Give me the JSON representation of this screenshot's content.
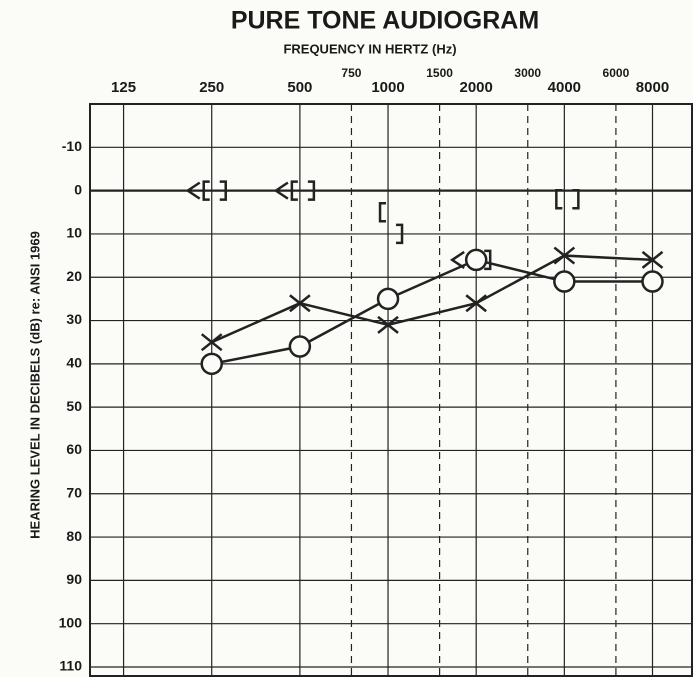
{
  "chart_data": {
    "type": "audiogram",
    "title": "PURE TONE AUDIOGRAM",
    "subtitle": "FREQUENCY IN HERTZ (Hz)",
    "y_label": "HEARING LEVEL IN DECIBELS (dB) re: ANSI 1969",
    "xscale": "log",
    "xlim": [
      96,
      11000
    ],
    "xticks": [
      125,
      250,
      500,
      1000,
      2000,
      4000,
      8000
    ],
    "xticks_minor": [
      750,
      1500,
      3000,
      6000
    ],
    "ylim": [
      -20,
      110
    ],
    "y_inverted": true,
    "yticks": [
      -10,
      0,
      10,
      20,
      30,
      40,
      50,
      60,
      70,
      80,
      90,
      100,
      110
    ],
    "grid": true,
    "series": [
      {
        "marker": "circle",
        "color": "#222222",
        "line": true,
        "x": [
          250,
          500,
          1000,
          2000,
          4000,
          8000
        ],
        "values": [
          40,
          36,
          25,
          16,
          21,
          21
        ]
      },
      {
        "marker": "cross",
        "color": "#222222",
        "line": true,
        "x": [
          250,
          500,
          1000,
          2000,
          4000,
          8000
        ],
        "values": [
          35,
          26,
          31,
          26,
          15,
          16
        ]
      },
      {
        "marker": "less-than",
        "color": "#222222",
        "line": false,
        "x": [
          250,
          500,
          2000
        ],
        "values": [
          0,
          0,
          16
        ]
      },
      {
        "marker": "open-bracket",
        "color": "#222222",
        "line": false,
        "x": [
          250,
          500,
          1000,
          4000
        ],
        "values": [
          0,
          0,
          5,
          2
        ]
      },
      {
        "marker": "close-bracket",
        "color": "#222222",
        "line": false,
        "x": [
          250,
          500,
          1000,
          2000,
          4000
        ],
        "values": [
          0,
          0,
          10,
          16,
          2
        ]
      }
    ]
  }
}
